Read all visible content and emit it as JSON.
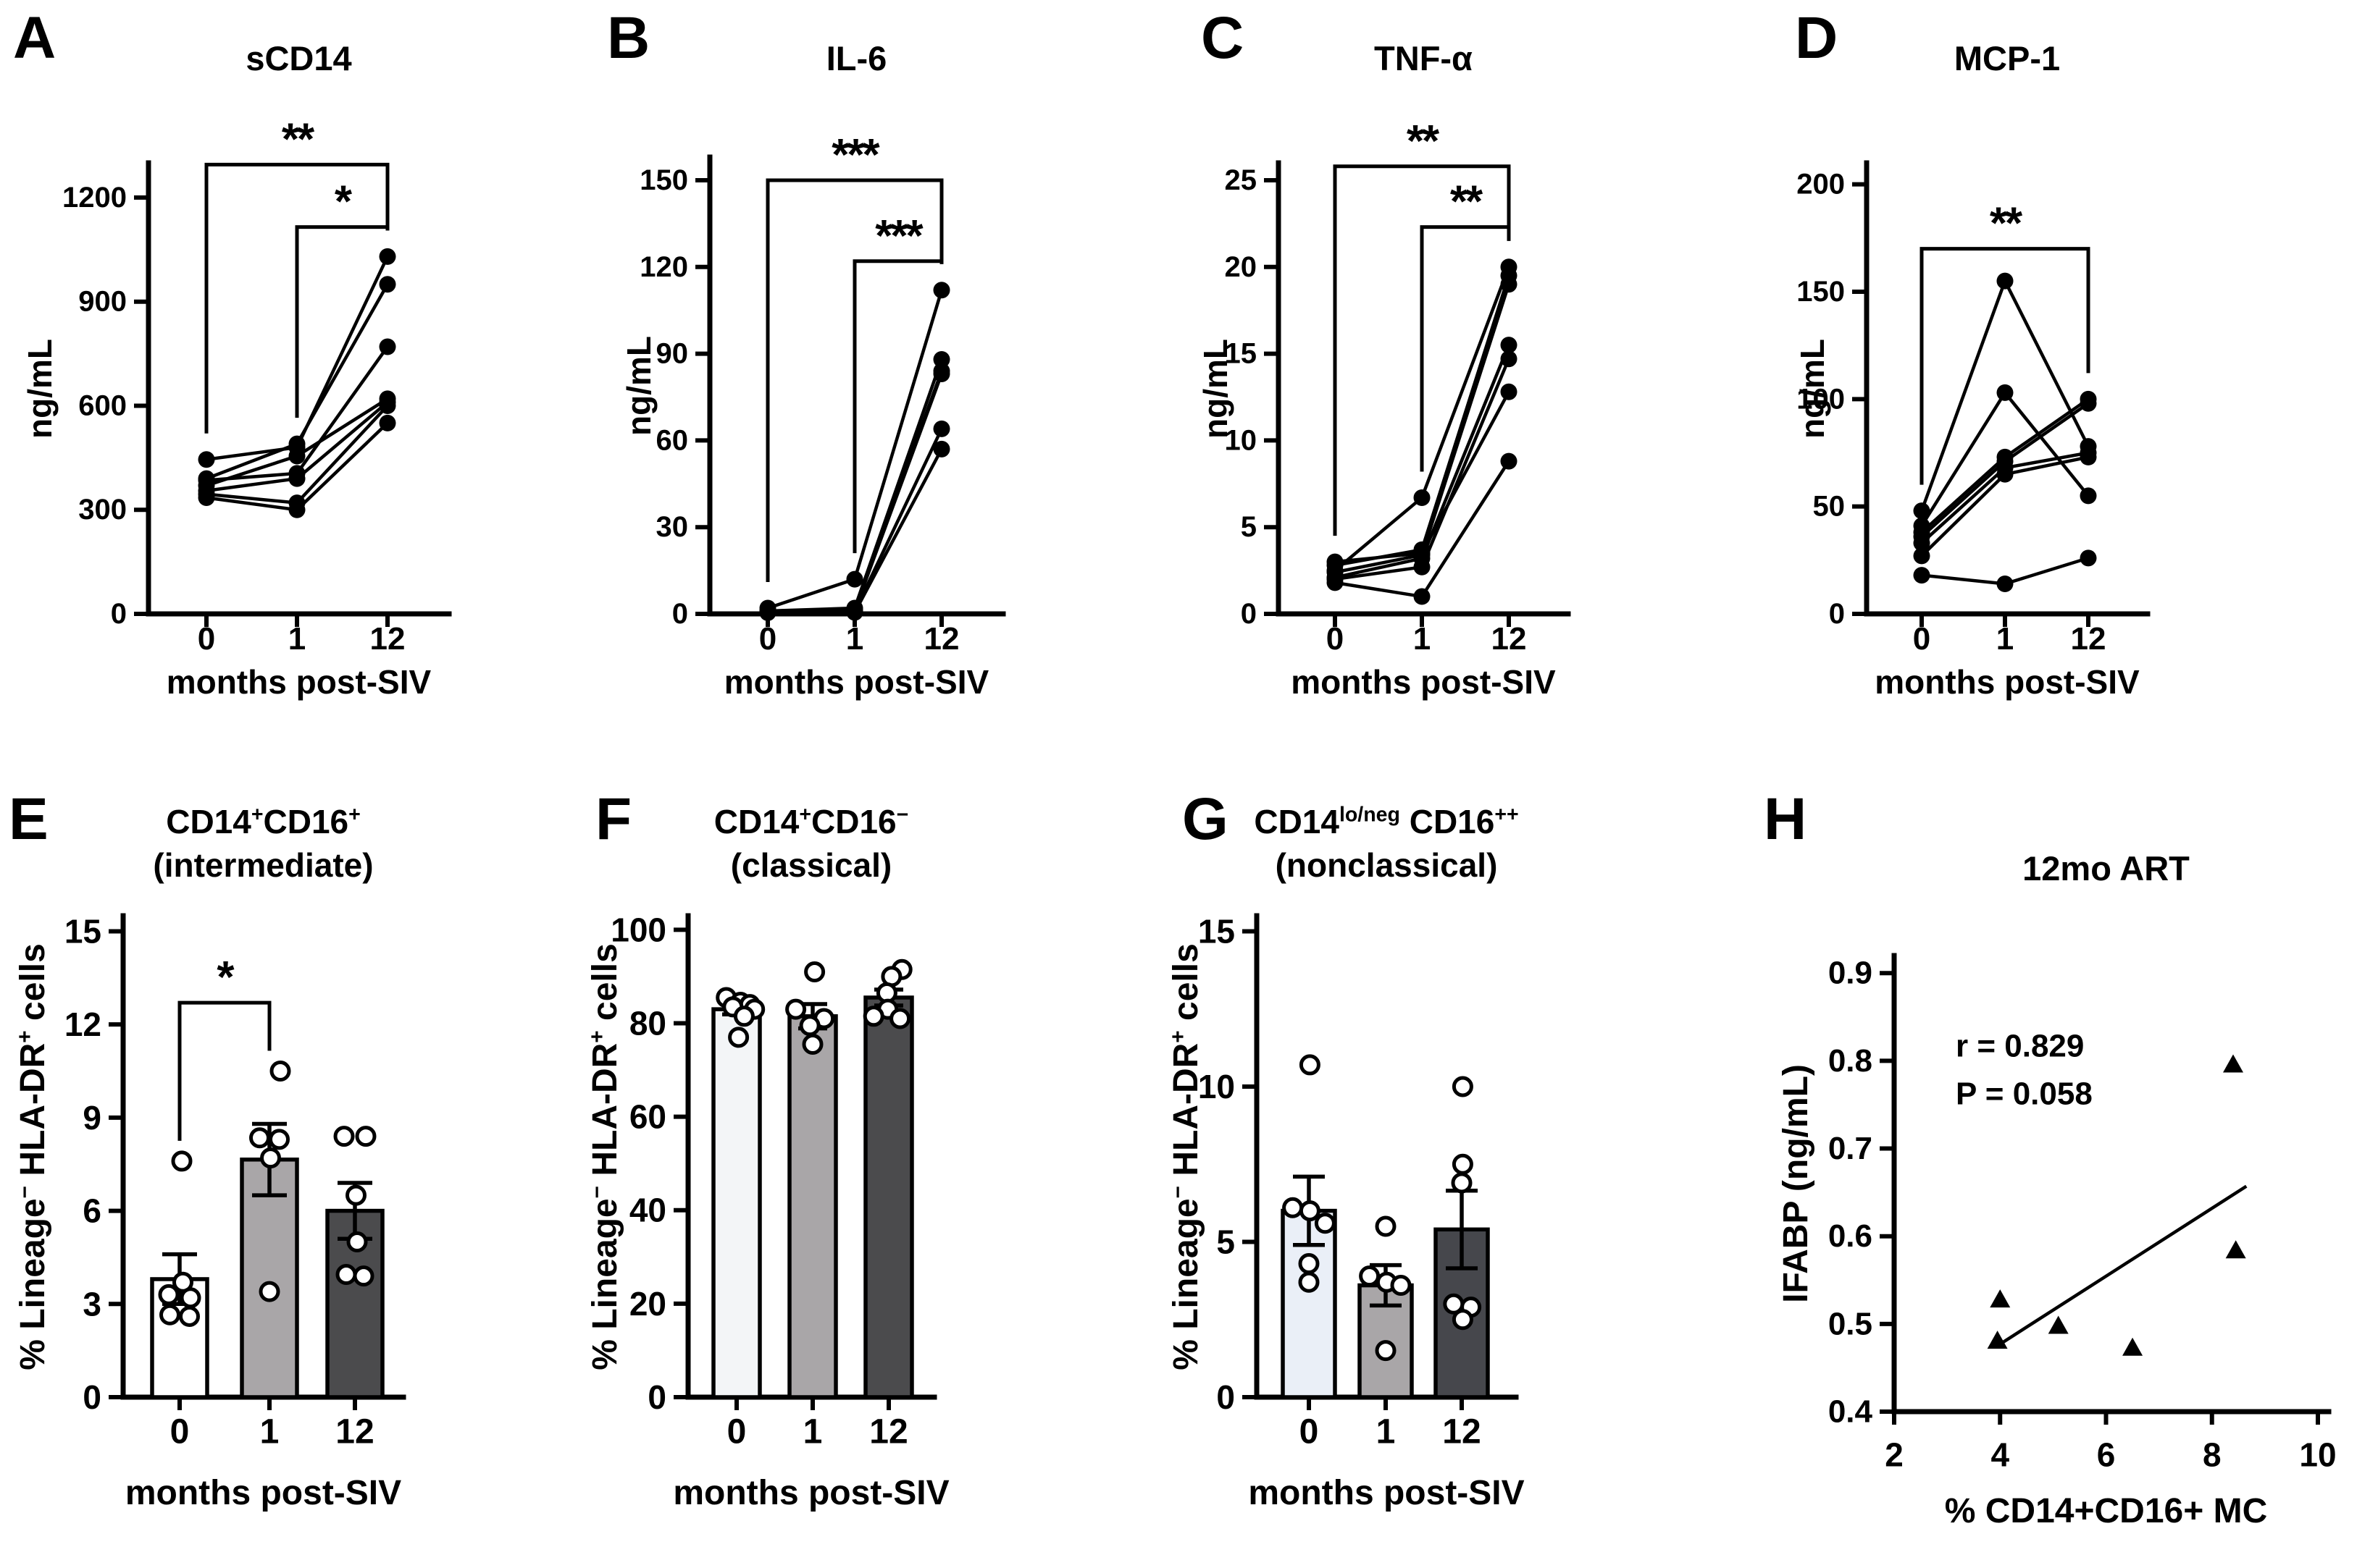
{
  "figure": {
    "background": "#ffffff",
    "ink": "#000000"
  },
  "chart_data": [
    {
      "panel": "A",
      "type": "line",
      "title": "sCD14",
      "title_rich": [
        {
          "t": "sCD14"
        }
      ],
      "ylabel_rich": [
        {
          "t": "ng/mL"
        }
      ],
      "xlabel": "months post-SIV",
      "categories": [
        "0",
        "1",
        "12"
      ],
      "y_ticks": [
        "0",
        "300",
        "600",
        "900",
        "1200"
      ],
      "ylim": [
        0,
        1300
      ],
      "series": [
        [
          445,
          480,
          1030
        ],
        [
          390,
          490,
          950
        ],
        [
          385,
          405,
          770
        ],
        [
          370,
          455,
          620
        ],
        [
          355,
          390,
          610
        ],
        [
          345,
          320,
          600
        ],
        [
          335,
          300,
          550
        ]
      ],
      "significance": [
        {
          "from": 0,
          "to": 2,
          "label": "**",
          "line_value": 1295
        },
        {
          "from": 1,
          "to": 2,
          "label": "*",
          "line_value": 1115
        }
      ]
    },
    {
      "panel": "B",
      "type": "line",
      "title": "IL-6",
      "title_rich": [
        {
          "t": "IL-6"
        }
      ],
      "ylabel_rich": [
        {
          "t": "ng/mL"
        }
      ],
      "xlabel": "months post-SIV",
      "categories": [
        "0",
        "1",
        "12"
      ],
      "y_ticks": [
        "0",
        "30",
        "60",
        "90",
        "120",
        "150"
      ],
      "ylim": [
        0,
        158
      ],
      "series": [
        [
          2,
          12,
          112
        ],
        [
          1,
          2,
          88
        ],
        [
          1,
          1.5,
          84
        ],
        [
          0.8,
          1.2,
          83
        ],
        [
          0.5,
          0.8,
          64
        ],
        [
          0.4,
          0.5,
          57
        ]
      ],
      "significance": [
        {
          "from": 0,
          "to": 2,
          "label": "***",
          "line_value": 150
        },
        {
          "from": 1,
          "to": 2,
          "label": "***",
          "line_value": 122
        }
      ]
    },
    {
      "panel": "C",
      "type": "line",
      "title": "TNF-α",
      "title_rich": [
        {
          "t": "TNF-α"
        }
      ],
      "ylabel_rich": [
        {
          "t": "ng/mL"
        }
      ],
      "xlabel": "months post-SIV",
      "categories": [
        "0",
        "1",
        "12"
      ],
      "y_ticks": [
        "0",
        "5",
        "10",
        "15",
        "20",
        "25"
      ],
      "ylim": [
        0,
        26
      ],
      "series": [
        [
          2.5,
          6.7,
          20.0
        ],
        [
          2.8,
          3.7,
          19.5
        ],
        [
          2.4,
          3.4,
          19.0
        ],
        [
          2.1,
          3.2,
          15.5
        ],
        [
          2.0,
          2.7,
          14.7
        ],
        [
          3.0,
          3.5,
          12.8
        ],
        [
          1.8,
          1.0,
          8.8
        ]
      ],
      "significance": [
        {
          "from": 0,
          "to": 2,
          "label": "**",
          "line_value": 25.8
        },
        {
          "from": 1,
          "to": 2,
          "label": "**",
          "line_value": 22.3
        }
      ]
    },
    {
      "panel": "D",
      "type": "line",
      "title": "MCP-1",
      "title_rich": [
        {
          "t": "MCP-1"
        }
      ],
      "ylabel_rich": [
        {
          "t": "ng/mL"
        }
      ],
      "xlabel": "months post-SIV",
      "categories": [
        "0",
        "1",
        "12"
      ],
      "y_ticks": [
        "0",
        "50",
        "100",
        "150",
        "200"
      ],
      "ylim": [
        0,
        210
      ],
      "series": [
        [
          48,
          155,
          78
        ],
        [
          41,
          103,
          55
        ],
        [
          38,
          73,
          100
        ],
        [
          36,
          71,
          98
        ],
        [
          33,
          68,
          75
        ],
        [
          27,
          65,
          73
        ],
        [
          18,
          14,
          26
        ]
      ],
      "significance": [
        {
          "from": 0,
          "to": 2,
          "label": "**",
          "line_value": 170
        }
      ]
    },
    {
      "panel": "E",
      "type": "bar",
      "title_rich": [
        {
          "t": "CD14"
        },
        {
          "t": "+",
          "sup": true
        },
        {
          "t": "CD16"
        },
        {
          "t": "+",
          "sup": true
        }
      ],
      "title_line2": "(intermediate)",
      "ylabel_rich": [
        {
          "t": "% Lineage"
        },
        {
          "t": "−",
          "sup": true
        },
        {
          "t": " HLA-DR"
        },
        {
          "t": "+",
          "sup": true
        },
        {
          "t": " cells"
        }
      ],
      "xlabel": "months post-SIV",
      "categories": [
        "0",
        "1",
        "12"
      ],
      "y_ticks": [
        "0",
        "3",
        "6",
        "9",
        "12",
        "15"
      ],
      "ylim": [
        0,
        15.5
      ],
      "bar_means": [
        3.8,
        7.65,
        6.0
      ],
      "bar_sem": [
        0.8,
        1.15,
        0.9
      ],
      "bar_colors": [
        "#ffffff",
        "#a9a6a8",
        "#4b4b4d"
      ],
      "points": [
        [
          {
            "v": 7.6,
            "j": 0.1
          },
          {
            "v": 3.7,
            "j": 0.15
          },
          {
            "v": 3.3,
            "j": -0.5
          },
          {
            "v": 3.2,
            "j": 0.5
          },
          {
            "v": 2.65,
            "j": -0.45
          },
          {
            "v": 2.6,
            "j": 0.45
          }
        ],
        [
          {
            "v": 10.5,
            "j": 0.5
          },
          {
            "v": 8.35,
            "j": -0.45
          },
          {
            "v": 8.3,
            "j": 0.45
          },
          {
            "v": 7.7,
            "j": 0.05
          },
          {
            "v": 3.4,
            "j": 0
          }
        ],
        [
          {
            "v": 8.4,
            "j": -0.5
          },
          {
            "v": 8.4,
            "j": 0.5
          },
          {
            "v": 6.5,
            "j": 0.05
          },
          {
            "v": 5.0,
            "j": 0.1
          },
          {
            "v": 3.95,
            "j": -0.4
          },
          {
            "v": 3.9,
            "j": 0.4
          }
        ]
      ],
      "significance": [
        {
          "from": 0,
          "to": 1,
          "label": "*",
          "line_value": 12.7
        }
      ]
    },
    {
      "panel": "F",
      "type": "bar",
      "title_rich": [
        {
          "t": "CD14"
        },
        {
          "t": "+",
          "sup": true
        },
        {
          "t": "CD16"
        },
        {
          "t": "−",
          "sup": true
        }
      ],
      "title_line2": "(classical)",
      "ylabel_rich": [
        {
          "t": "% Lineage"
        },
        {
          "t": "−",
          "sup": true
        },
        {
          "t": " HLA-DR"
        },
        {
          "t": "+",
          "sup": true
        },
        {
          "t": " cells"
        }
      ],
      "xlabel": "months post-SIV",
      "categories": [
        "0",
        "1",
        "12"
      ],
      "y_ticks": [
        "0",
        "20",
        "40",
        "60",
        "80",
        "100"
      ],
      "ylim": [
        0,
        103
      ],
      "bar_means": [
        83,
        81.5,
        85.5
      ],
      "bar_sem": [
        1.1,
        2.6,
        1.7
      ],
      "bar_colors": [
        "#f3f5f7",
        "#a9a6a8",
        "#4b4b4d"
      ],
      "points": [
        [
          {
            "v": 85.5,
            "j": -0.55
          },
          {
            "v": 84.5,
            "j": 0.2
          },
          {
            "v": 84,
            "j": 0.7
          },
          {
            "v": 83.5,
            "j": -0.2
          },
          {
            "v": 83,
            "j": 0.95
          },
          {
            "v": 81.5,
            "j": 0.4
          },
          {
            "v": 77,
            "j": 0.1
          }
        ],
        [
          {
            "v": 91,
            "j": 0.1
          },
          {
            "v": 83,
            "j": -0.9
          },
          {
            "v": 81,
            "j": 0.6
          },
          {
            "v": 79.5,
            "j": -0.15
          },
          {
            "v": 75.5,
            "j": 0
          }
        ],
        [
          {
            "v": 91.5,
            "j": 0.7
          },
          {
            "v": 90,
            "j": 0.15
          },
          {
            "v": 86.5,
            "j": -0.1
          },
          {
            "v": 83,
            "j": -0.05
          },
          {
            "v": 81.5,
            "j": -0.8
          },
          {
            "v": 81,
            "j": 0.6
          }
        ]
      ],
      "significance": []
    },
    {
      "panel": "G",
      "type": "bar",
      "title_rich": [
        {
          "t": "CD14"
        },
        {
          "t": "lo/neg",
          "sup": true
        },
        {
          "t": " CD16"
        },
        {
          "t": "++",
          "sup": true
        }
      ],
      "title_line2": "(nonclassical)",
      "ylabel_rich": [
        {
          "t": "% Lineage"
        },
        {
          "t": "−",
          "sup": true
        },
        {
          "t": " HLA-DR"
        },
        {
          "t": "+",
          "sup": true
        },
        {
          "t": " cells"
        }
      ],
      "xlabel": "months post-SIV",
      "categories": [
        "0",
        "1",
        "12"
      ],
      "y_ticks": [
        "0",
        "5",
        "10",
        "15"
      ],
      "ylim": [
        0,
        15.5
      ],
      "bar_means": [
        6.0,
        3.6,
        5.4
      ],
      "bar_sem": [
        1.1,
        0.65,
        1.25
      ],
      "bar_colors": [
        "#eaeff7",
        "#a9a6a8",
        "#46474c"
      ],
      "points": [
        [
          {
            "v": 10.7,
            "j": 0.05
          },
          {
            "v": 6.1,
            "j": -0.8
          },
          {
            "v": 6.0,
            "j": 0.05
          },
          {
            "v": 5.6,
            "j": 0.8
          },
          {
            "v": 4.3,
            "j": 0
          },
          {
            "v": 3.7,
            "j": 0
          }
        ],
        [
          {
            "v": 5.5,
            "j": 0
          },
          {
            "v": 3.9,
            "j": -0.8
          },
          {
            "v": 3.7,
            "j": 0.05
          },
          {
            "v": 3.6,
            "j": 0.75
          },
          {
            "v": 1.5,
            "j": 0
          }
        ],
        [
          {
            "v": 10.0,
            "j": 0.05
          },
          {
            "v": 7.5,
            "j": 0.05
          },
          {
            "v": 6.9,
            "j": 0
          },
          {
            "v": 3.0,
            "j": -0.4
          },
          {
            "v": 2.9,
            "j": 0.45
          },
          {
            "v": 2.5,
            "j": 0.05
          }
        ]
      ],
      "significance": []
    },
    {
      "panel": "H",
      "type": "scatter",
      "title_rich": [
        {
          "t": "12mo ART"
        }
      ],
      "ylabel_rich": [
        {
          "t": "IFABP (ng/mL)"
        }
      ],
      "xlabel": "% CD14+CD16+ MC",
      "x_ticks": [
        "2",
        "4",
        "6",
        "8",
        "10"
      ],
      "xlim": [
        2,
        10
      ],
      "y_ticks": [
        "0.4",
        "0.5",
        "0.6",
        "0.7",
        "0.8",
        "0.9"
      ],
      "ylim": [
        0.4,
        0.92
      ],
      "points": [
        [
          4.0,
          0.527
        ],
        [
          3.95,
          0.48
        ],
        [
          5.1,
          0.497
        ],
        [
          6.5,
          0.472
        ],
        [
          8.4,
          0.795
        ],
        [
          8.45,
          0.583
        ]
      ],
      "regression": {
        "x1": 4.0,
        "y1": 0.477,
        "x2": 8.65,
        "y2": 0.657
      },
      "annotations": [
        "r = 0.829",
        "P = 0.058"
      ]
    }
  ]
}
